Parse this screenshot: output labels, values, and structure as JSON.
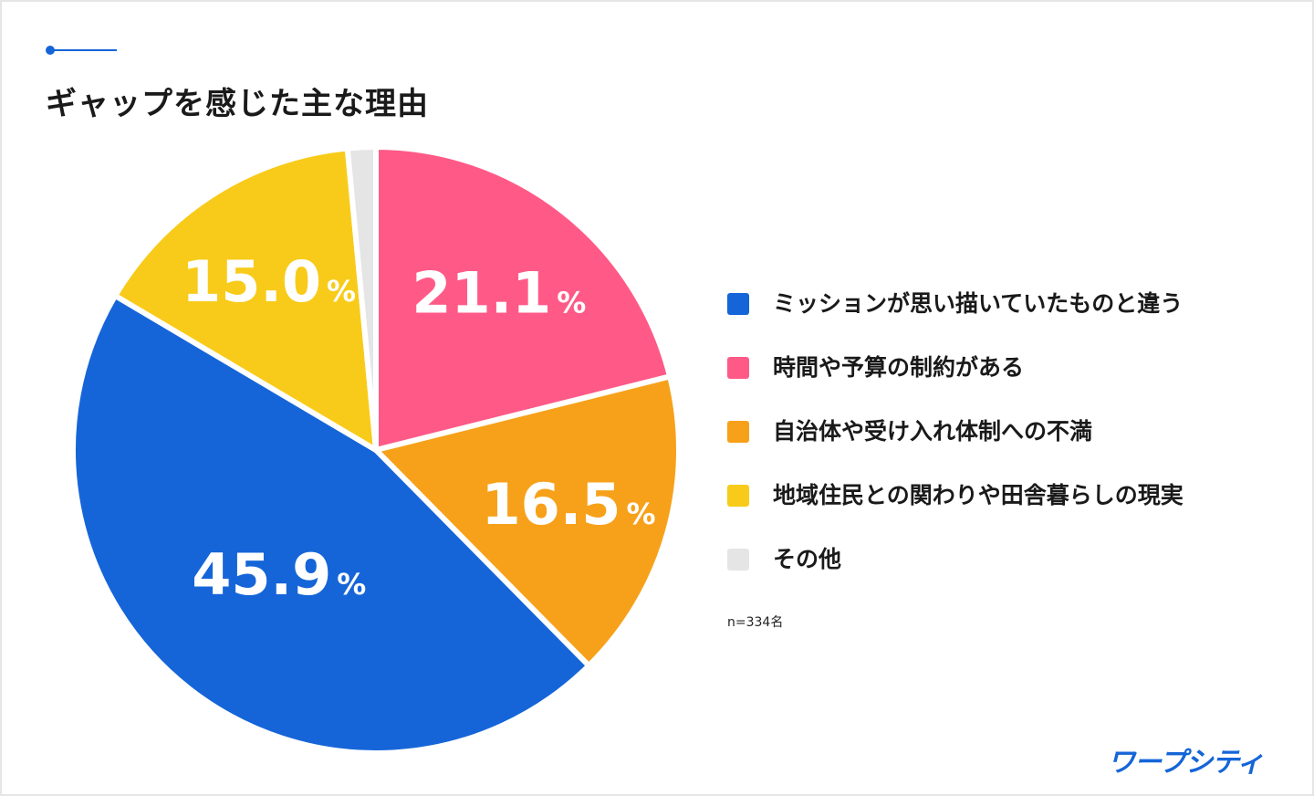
{
  "title": "ギャップを感じた主な理由",
  "sample_note": "n=334名",
  "brand": "ワープシティ",
  "chart_data": {
    "type": "pie",
    "title": "ギャップを感じた主な理由",
    "unit": "%",
    "slices": [
      {
        "label": "時間や予算の制約がある",
        "value": 21.1,
        "display": "21.1",
        "color": "#ff5a87"
      },
      {
        "label": "自治体や受け入れ体制への不満",
        "value": 16.5,
        "display": "16.5",
        "color": "#f7a11a"
      },
      {
        "label": "ミッションが思い描いていたものと違う",
        "value": 45.9,
        "display": "45.9",
        "color": "#1565d8"
      },
      {
        "label": "地域住民との関わりや田舎暮らしの現実",
        "value": 15.0,
        "display": "15.0",
        "color": "#f8cb1a"
      },
      {
        "label": "その他",
        "value": 1.5,
        "display": "",
        "color": "#e5e5e5"
      }
    ],
    "legend": [
      {
        "label": "ミッションが思い描いていたものと違う",
        "color": "#1565d8"
      },
      {
        "label": "時間や予算の制約がある",
        "color": "#ff5a87"
      },
      {
        "label": "自治体や受け入れ体制への不満",
        "color": "#f7a11a"
      },
      {
        "label": "地域住民との関わりや田舎暮らしの現実",
        "color": "#f8cb1a"
      },
      {
        "label": "その他",
        "color": "#e5e5e5"
      }
    ],
    "legend_position": "right"
  }
}
